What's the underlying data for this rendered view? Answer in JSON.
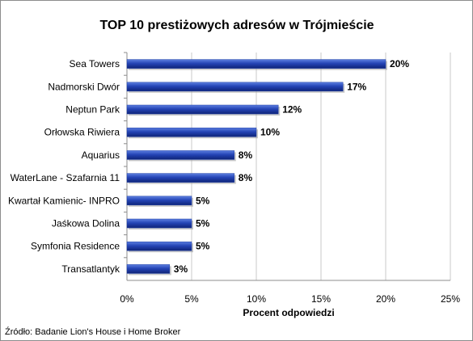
{
  "chart_data": {
    "type": "bar",
    "orientation": "horizontal",
    "title": "TOP 10 prestiżowych adresów w Trójmieście",
    "categories": [
      "Sea Towers",
      "Nadmorski Dwór",
      "Neptun Park",
      "Orłowska Riwiera",
      "Aquarius",
      "WaterLane - Szafarnia 11",
      "Kwartał Kamienic- INPRO",
      "Jaśkowa Dolina",
      "Symfonia Residence",
      "Transatlantyk"
    ],
    "values": [
      20,
      17,
      12,
      10,
      8,
      8,
      5,
      5,
      5,
      3
    ],
    "value_labels": [
      "20%",
      "17%",
      "12%",
      "10%",
      "8%",
      "8%",
      "5%",
      "5%",
      "5%",
      "3%"
    ],
    "bar_values": [
      20,
      16.7,
      11.7,
      10,
      8.3,
      8.3,
      5,
      5,
      5,
      3.3
    ],
    "xlabel": "Procent odpowiedzi",
    "ylabel": "",
    "xlim": [
      0,
      25
    ],
    "x_ticks": [
      "0%",
      "5%",
      "10%",
      "15%",
      "20%",
      "25%"
    ],
    "x_tick_values": [
      0,
      5,
      10,
      15,
      20,
      25
    ],
    "grid": true,
    "bar_color": "#1f3fa6",
    "source": "Źródło: Badanie Lion's House i Home Broker"
  }
}
